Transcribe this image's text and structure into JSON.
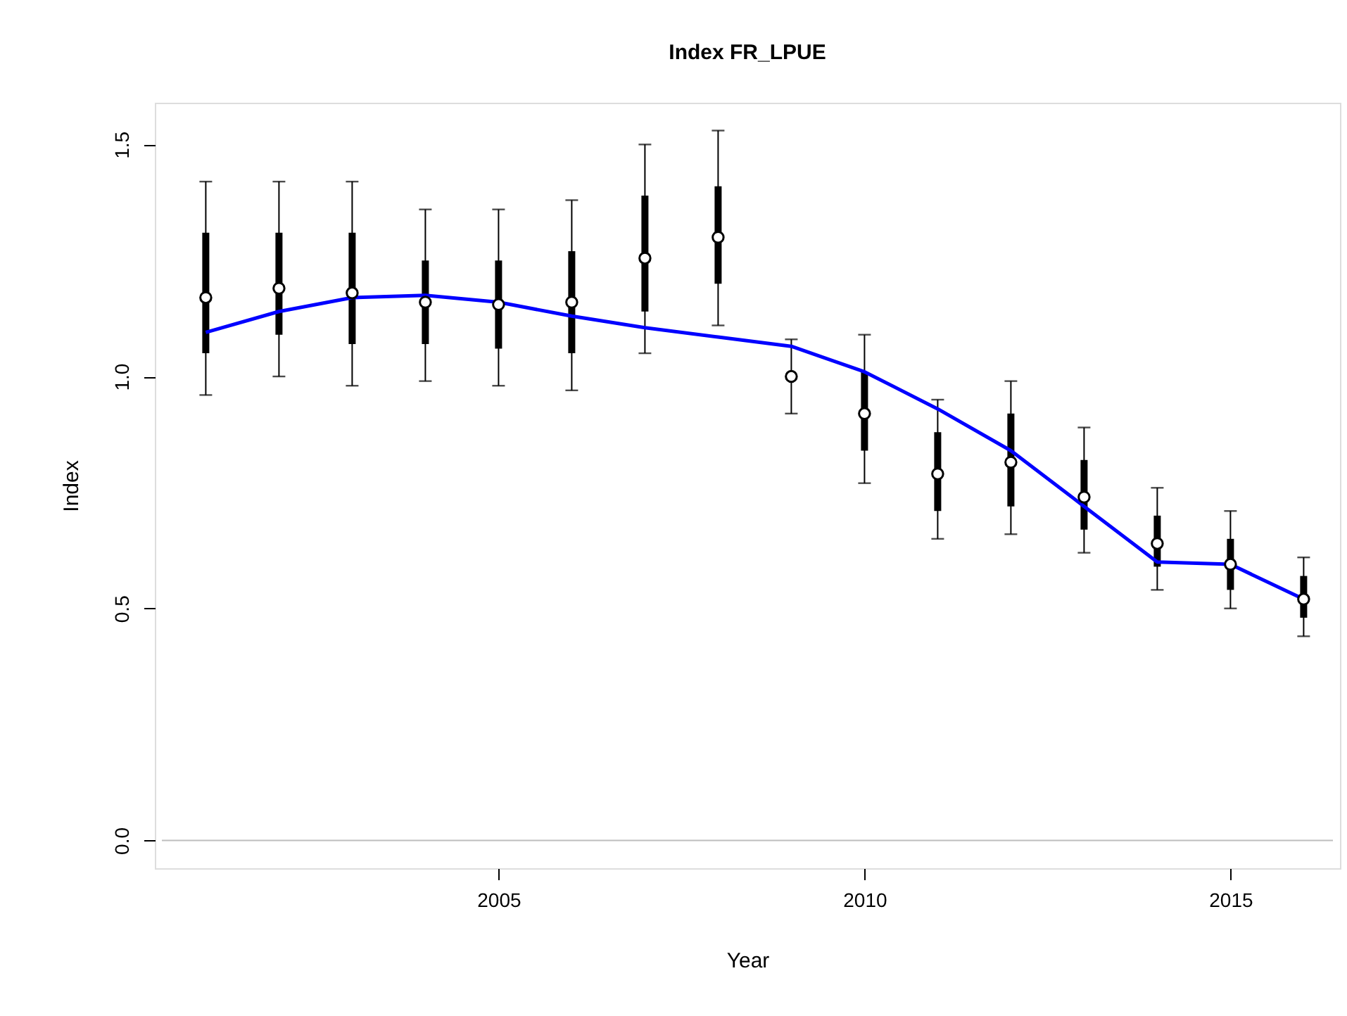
{
  "chart_data": {
    "type": "scatter",
    "title": "Index FR_LPUE",
    "xlabel": "Year",
    "ylabel": "Index",
    "x": [
      2001,
      2002,
      2003,
      2004,
      2005,
      2006,
      2007,
      2008,
      2009,
      2010,
      2011,
      2012,
      2013,
      2014,
      2015,
      2016
    ],
    "xlim": [
      2000.4,
      2016.4
    ],
    "xticks": [
      2005,
      2010,
      2015
    ],
    "ylim": [
      -0.06,
      1.59
    ],
    "yticks": [
      {
        "value": 0,
        "label": "0.0"
      },
      {
        "value": 0.5,
        "label": "0.5"
      },
      {
        "value": 1,
        "label": "1.0"
      },
      {
        "value": 1.5,
        "label": "1.5"
      }
    ],
    "grid": false,
    "marker": "circle",
    "series": [
      {
        "color": "#000000",
        "values": [
          1.17,
          1.19,
          1.18,
          1.16,
          1.155,
          1.16,
          1.255,
          1.3,
          1.0,
          0.92,
          0.79,
          0.815,
          0.74,
          0.64,
          0.595,
          0.52
        ],
        "errors": [
          [
            0.96,
            1.42
          ],
          [
            1.0,
            1.42
          ],
          [
            0.98,
            1.42
          ],
          [
            0.99,
            1.36
          ],
          [
            0.98,
            1.36
          ],
          [
            0.97,
            1.38
          ],
          [
            1.05,
            1.5
          ],
          [
            1.11,
            1.53
          ],
          [
            0.92,
            1.08
          ],
          [
            0.77,
            1.09
          ],
          [
            0.65,
            0.95
          ],
          [
            0.66,
            0.99
          ],
          [
            0.62,
            0.89
          ],
          [
            0.54,
            0.76
          ],
          [
            0.5,
            0.71
          ],
          [
            0.44,
            0.61
          ]
        ]
      },
      {
        "type": "bar",
        "color": "#000000",
        "x": [
          2001,
          2002,
          2003,
          2004,
          2005,
          2006,
          2007,
          2008,
          2010,
          2011,
          2012,
          2013,
          2014,
          2015,
          2016
        ],
        "base": [
          1.05,
          1.09,
          1.07,
          1.07,
          1.06,
          1.05,
          1.14,
          1.2,
          0.84,
          0.71,
          0.72,
          0.67,
          0.59,
          0.54,
          0.48
        ],
        "values": [
          0.26,
          0.22,
          0.24,
          0.18,
          0.19,
          0.22,
          0.25,
          0.21,
          0.17,
          0.17,
          0.2,
          0.15,
          0.11,
          0.11,
          0.09
        ]
      },
      {
        "type": "line",
        "color": "#0000ff",
        "line_style": "solid",
        "marker": "none",
        "values": [
          1.095,
          1.14,
          1.17,
          1.175,
          1.16,
          1.13,
          1.105,
          1.085,
          1.065,
          1.01,
          0.93,
          0.84,
          0.72,
          0.6,
          0.595,
          0.52
        ]
      }
    ],
    "ref_lines": [
      {
        "axis": "y",
        "value": 0.0,
        "color": "#bebebe",
        "line_style": "solid"
      }
    ]
  }
}
